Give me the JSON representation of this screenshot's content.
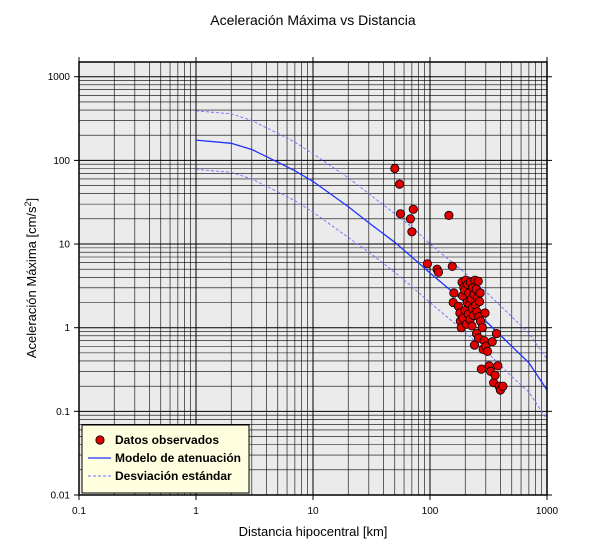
{
  "chart_data": {
    "type": "scatter",
    "title": "Aceleración Máxima vs Distancia",
    "xlabel": "Distancia hipocentral [km]",
    "ylabel": "Aceleración Máxima [cm/s",
    "ylabel_sup": "2",
    "ylabel_end": "]",
    "xscale": "log",
    "yscale": "log",
    "xlim": [
      0.1,
      1000
    ],
    "ylim": [
      0.01,
      1500
    ],
    "grid": true,
    "legend_position": "bottom-left",
    "x_ticks": [
      0.1,
      1,
      10,
      100,
      1000
    ],
    "x_tick_labels": [
      "0.1",
      "1",
      "10",
      "100",
      "1000"
    ],
    "y_ticks": [
      0.01,
      0.1,
      1,
      10,
      100,
      1000
    ],
    "y_tick_labels": [
      "0.01",
      "0.1",
      "1",
      "10",
      "100",
      "1000"
    ],
    "legend": [
      {
        "label": "Datos observados",
        "kind": "marker"
      },
      {
        "label": "Modelo de atenuación",
        "kind": "solid"
      },
      {
        "label": "Desviación estándar",
        "kind": "dashed"
      }
    ],
    "colors": {
      "points": "#e00000",
      "model": "#1e32ff",
      "std": "#6e6eff",
      "plot_bg": "#ebebeb",
      "legend_bg": "#ffffe0"
    },
    "series": [
      {
        "name": "Datos observados",
        "type": "scatter",
        "x": [
          50,
          55,
          56,
          68,
          72,
          70,
          145,
          95,
          115,
          118,
          155,
          160,
          158,
          175,
          180,
          182,
          185,
          188,
          190,
          192,
          195,
          198,
          200,
          202,
          205,
          208,
          210,
          212,
          215,
          218,
          220,
          222,
          225,
          228,
          230,
          232,
          235,
          238,
          240,
          242,
          245,
          248,
          250,
          252,
          255,
          258,
          260,
          262,
          265,
          268,
          270,
          275,
          280,
          285,
          290,
          295,
          300,
          310,
          320,
          330,
          340,
          350,
          360,
          370,
          380,
          390,
          400,
          420
        ],
        "y": [
          80,
          52,
          23,
          20,
          26,
          14,
          22,
          5.8,
          5,
          4.6,
          5.4,
          2.6,
          2,
          1.8,
          1.5,
          1.2,
          1.0,
          3.5,
          2.4,
          1.3,
          3.0,
          2.8,
          1.6,
          3.7,
          1.1,
          2.0,
          3.3,
          1.45,
          2.6,
          1.9,
          1.25,
          3.5,
          2.2,
          1.05,
          1.7,
          3.0,
          1.4,
          2.5,
          0.62,
          3.7,
          1.85,
          2.9,
          0.85,
          1.55,
          2.3,
          3.6,
          0.75,
          1.35,
          2.05,
          2.6,
          1.2,
          0.32,
          1.0,
          0.55,
          0.7,
          1.5,
          0.6,
          0.52,
          0.35,
          0.3,
          0.68,
          0.22,
          0.27,
          0.85,
          0.35,
          0.2,
          0.18,
          0.2
        ]
      },
      {
        "name": "Modelo de atenuación",
        "type": "line",
        "x": [
          1,
          2,
          3,
          5,
          7,
          10,
          20,
          30,
          50,
          70,
          100,
          200,
          300,
          500,
          700,
          1000
        ],
        "y": [
          175,
          160,
          135,
          95,
          75,
          56,
          28,
          18,
          10.5,
          7,
          4.5,
          2,
          1.2,
          0.6,
          0.38,
          0.18
        ]
      },
      {
        "name": "Desviación estándar (superior)",
        "type": "line",
        "x": [
          1,
          2,
          3,
          5,
          7,
          10,
          20,
          30,
          50,
          70,
          100,
          200,
          300,
          500,
          700,
          1000
        ],
        "y": [
          390,
          360,
          300,
          210,
          165,
          120,
          62,
          40,
          23,
          16,
          10,
          4.5,
          2.7,
          1.35,
          0.86,
          0.42
        ]
      },
      {
        "name": "Desviación estándar (inferior)",
        "type": "line",
        "x": [
          1,
          2,
          3,
          5,
          7,
          10,
          20,
          30,
          50,
          70,
          100,
          200,
          300,
          500,
          700,
          1000
        ],
        "y": [
          78,
          72,
          60,
          42,
          33,
          24,
          12,
          8,
          4.6,
          3.1,
          2,
          0.88,
          0.53,
          0.26,
          0.17,
          0.08
        ]
      }
    ]
  }
}
